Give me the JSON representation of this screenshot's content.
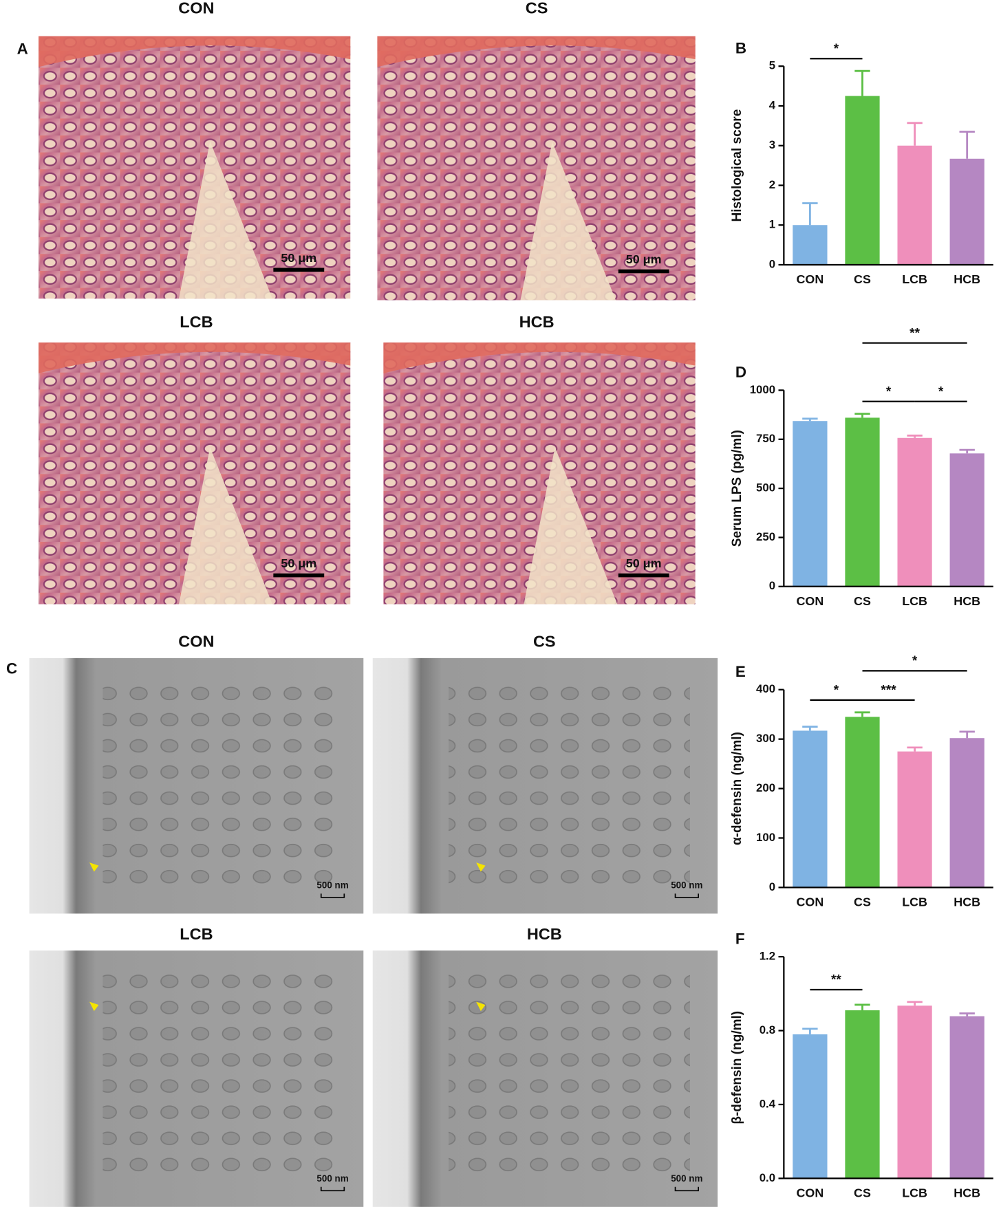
{
  "figure": {
    "panel_a": {
      "letter": "A",
      "images": [
        {
          "label": "CON",
          "scale_bar": "50 μm"
        },
        {
          "label": "CS",
          "scale_bar": "50 μm"
        },
        {
          "label": "LCB",
          "scale_bar": "50 μm"
        },
        {
          "label": "HCB",
          "scale_bar": "50 μm"
        }
      ]
    },
    "panel_c": {
      "letter": "C",
      "images": [
        {
          "label": "CON",
          "scale_bar": "500 nm"
        },
        {
          "label": "CS",
          "scale_bar": "500 nm"
        },
        {
          "label": "LCB",
          "scale_bar": "500 nm"
        },
        {
          "label": "HCB",
          "scale_bar": "500 nm"
        }
      ]
    }
  },
  "chart_data": [
    {
      "type": "bar",
      "panel": "B",
      "ylabel": "Histological score",
      "categories": [
        "CON",
        "CS",
        "LCB",
        "HCB"
      ],
      "values": [
        1.0,
        4.25,
        3.0,
        2.67
      ],
      "errors": [
        0.55,
        0.63,
        0.57,
        0.68
      ],
      "colors": [
        "#7fb3e3",
        "#5cbf45",
        "#ef8fbb",
        "#b587c2"
      ],
      "ylim": [
        0,
        5
      ],
      "yticks": [
        0,
        1,
        2,
        3,
        4,
        5
      ],
      "significance": [
        {
          "between": [
            "CON",
            "CS"
          ],
          "label": "*"
        }
      ]
    },
    {
      "type": "bar",
      "panel": "D",
      "ylabel": "Serum LPS (pg/ml)",
      "categories": [
        "CON",
        "CS",
        "LCB",
        "HCB"
      ],
      "values": [
        843,
        860,
        757,
        678
      ],
      "errors": [
        12,
        20,
        12,
        18
      ],
      "colors": [
        "#7fb3e3",
        "#5cbf45",
        "#ef8fbb",
        "#b587c2"
      ],
      "ylim": [
        0,
        1000
      ],
      "yticks": [
        0,
        250,
        500,
        750,
        1000
      ],
      "significance": [
        {
          "between": [
            "CS",
            "LCB"
          ],
          "label": "*"
        },
        {
          "between": [
            "LCB",
            "HCB"
          ],
          "label": "*"
        },
        {
          "between": [
            "CS",
            "HCB"
          ],
          "label": "**"
        }
      ]
    },
    {
      "type": "bar",
      "panel": "E",
      "ylabel": "α-defensin (ng/ml)",
      "categories": [
        "CON",
        "CS",
        "LCB",
        "HCB"
      ],
      "values": [
        317,
        345,
        275,
        302
      ],
      "errors": [
        8,
        9,
        8,
        13
      ],
      "colors": [
        "#7fb3e3",
        "#5cbf45",
        "#ef8fbb",
        "#b587c2"
      ],
      "ylim": [
        0,
        400
      ],
      "yticks": [
        0,
        100,
        200,
        300,
        400
      ],
      "significance": [
        {
          "between": [
            "CON",
            "CS"
          ],
          "label": "*"
        },
        {
          "between": [
            "CS",
            "LCB"
          ],
          "label": "***"
        },
        {
          "between": [
            "CS",
            "HCB"
          ],
          "label": "*"
        }
      ]
    },
    {
      "type": "bar",
      "panel": "F",
      "ylabel": "β-defensin (ng/ml)",
      "categories": [
        "CON",
        "CS",
        "LCB",
        "HCB"
      ],
      "values": [
        0.78,
        0.91,
        0.935,
        0.878
      ],
      "errors": [
        0.03,
        0.03,
        0.02,
        0.015
      ],
      "colors": [
        "#7fb3e3",
        "#5cbf45",
        "#ef8fbb",
        "#b587c2"
      ],
      "ylim": [
        0,
        1.2
      ],
      "yticks": [
        {
          "value": 0,
          "label": "0.0"
        },
        0.4,
        0.8,
        1.2
      ],
      "significance": [
        {
          "between": [
            "CON",
            "CS"
          ],
          "label": "**"
        }
      ]
    }
  ]
}
